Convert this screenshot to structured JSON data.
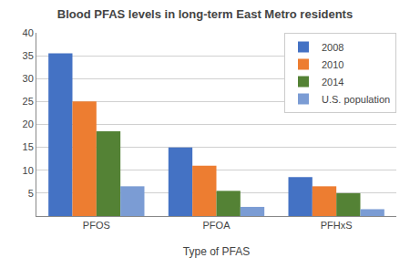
{
  "chart_data": {
    "type": "bar",
    "title": "Blood PFAS levels in long-term East Metro residents",
    "xlabel": "Type of PFAS",
    "categories": [
      "PFOS",
      "PFOA",
      "PFHxS"
    ],
    "series": [
      {
        "name": "2008",
        "color": "#4472C4",
        "values": [
          35.5,
          15,
          8.5
        ]
      },
      {
        "name": "2010",
        "color": "#ED7D31",
        "values": [
          25,
          11,
          6.5
        ]
      },
      {
        "name": "2014",
        "color": "#548235",
        "values": [
          18.5,
          5.5,
          5
        ]
      },
      {
        "name": "U.S. population",
        "color": "#7B9CD4",
        "values": [
          6.5,
          2,
          1.5
        ]
      }
    ],
    "ylim": [
      0,
      40
    ],
    "yticks": [
      5,
      10,
      15,
      20,
      25,
      30,
      35,
      40
    ],
    "grid": true,
    "legend": "upper right"
  }
}
